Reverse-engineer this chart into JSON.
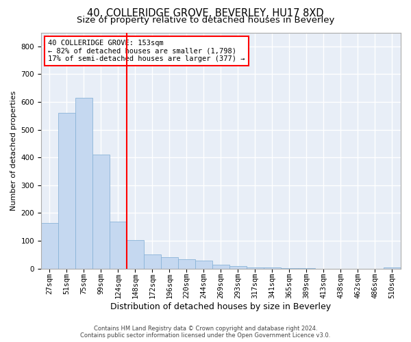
{
  "title": "40, COLLERIDGE GROVE, BEVERLEY, HU17 8XD",
  "subtitle": "Size of property relative to detached houses in Beverley",
  "xlabel": "Distribution of detached houses by size in Beverley",
  "ylabel": "Number of detached properties",
  "bar_color": "#c5d8f0",
  "bar_edgecolor": "#8ab4d8",
  "highlight_line_color": "red",
  "annotation_text": "40 COLLERIDGE GROVE: 153sqm\n← 82% of detached houses are smaller (1,798)\n17% of semi-detached houses are larger (377) →",
  "annotation_box_color": "white",
  "annotation_box_edgecolor": "red",
  "categories": [
    "27sqm",
    "51sqm",
    "75sqm",
    "99sqm",
    "124sqm",
    "148sqm",
    "172sqm",
    "196sqm",
    "220sqm",
    "244sqm",
    "269sqm",
    "293sqm",
    "317sqm",
    "341sqm",
    "365sqm",
    "389sqm",
    "413sqm",
    "438sqm",
    "462sqm",
    "486sqm",
    "510sqm"
  ],
  "values": [
    165,
    560,
    615,
    410,
    170,
    102,
    50,
    40,
    33,
    28,
    13,
    10,
    5,
    4,
    2,
    1,
    0,
    0,
    0,
    0,
    5
  ],
  "ylim": [
    0,
    850
  ],
  "yticks": [
    0,
    100,
    200,
    300,
    400,
    500,
    600,
    700,
    800
  ],
  "background_color": "#e8eef7",
  "grid_color": "white",
  "footer": "Contains HM Land Registry data © Crown copyright and database right 2024.\nContains public sector information licensed under the Open Government Licence v3.0.",
  "title_fontsize": 10.5,
  "subtitle_fontsize": 9.5,
  "xlabel_fontsize": 9,
  "ylabel_fontsize": 8,
  "tick_fontsize": 7.5,
  "footer_fontsize": 6,
  "annotation_fontsize": 7.5
}
